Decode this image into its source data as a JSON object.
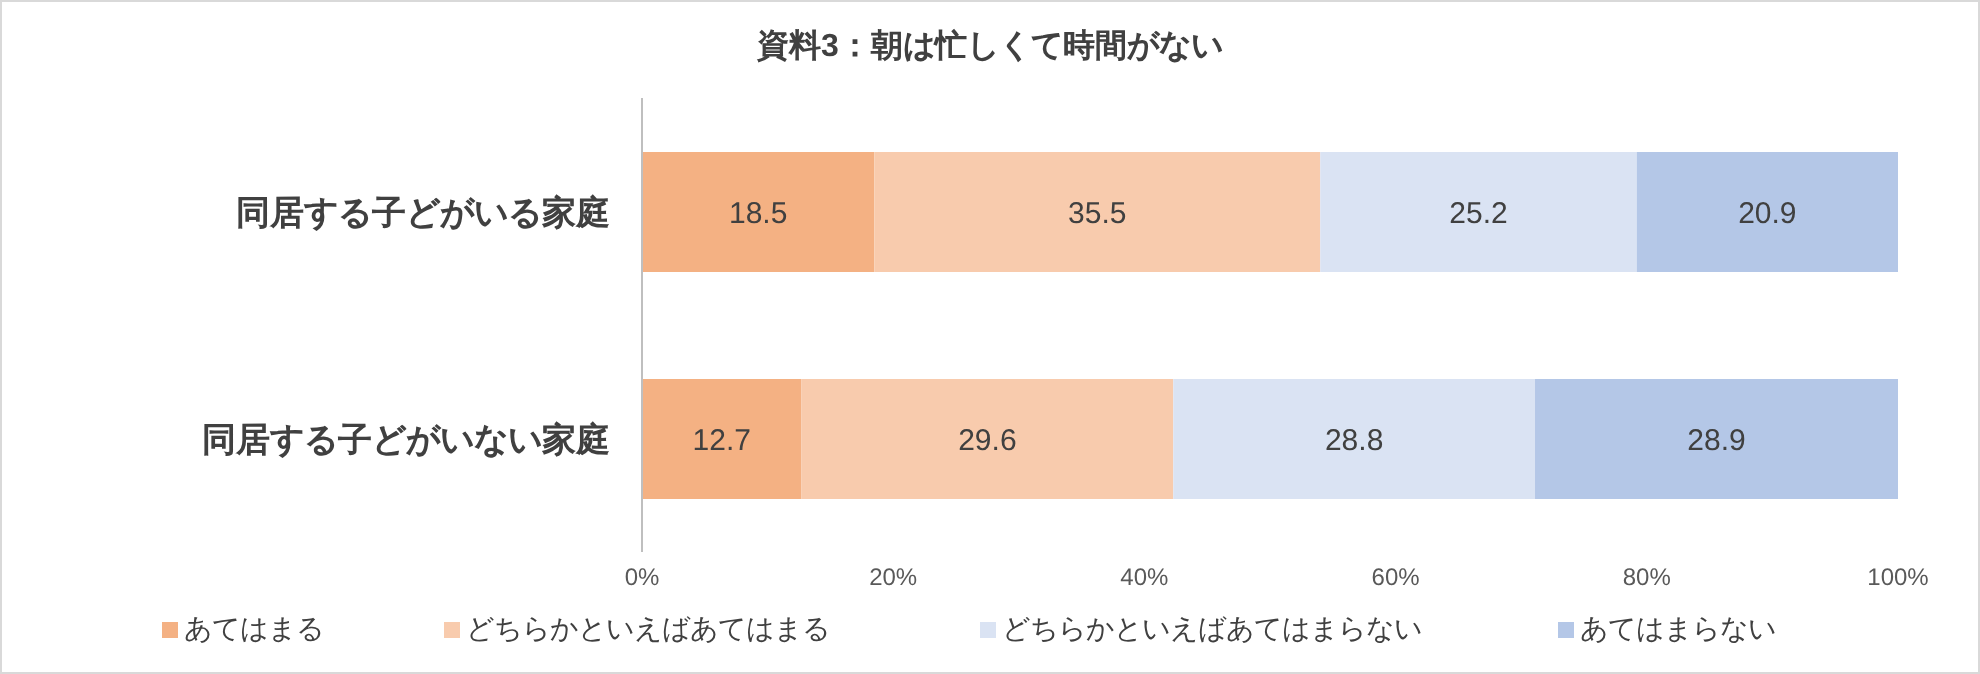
{
  "chart_data": {
    "type": "bar",
    "orientation": "horizontal",
    "stacked": true,
    "title": "資料3：朝は忙しくて時間がない",
    "categories": [
      "同居する子どがいる家庭",
      "同居する子どがいない家庭"
    ],
    "series": [
      {
        "name": "あてはまる",
        "color": "#f4b183",
        "values": [
          18.5,
          12.7
        ]
      },
      {
        "name": "どちらかといえばあてはまる",
        "color": "#f8cbad",
        "values": [
          35.5,
          29.6
        ]
      },
      {
        "name": "どちらかといえばあてはまらない",
        "color": "#dae3f3",
        "values": [
          25.2,
          28.8
        ]
      },
      {
        "name": "あてはまらない",
        "color": "#b4c7e7",
        "values": [
          20.9,
          28.9
        ]
      }
    ],
    "xlim": [
      0,
      100
    ],
    "xticks": [
      {
        "value": 0,
        "label": "0%"
      },
      {
        "value": 20,
        "label": "20%"
      },
      {
        "value": 40,
        "label": "40%"
      },
      {
        "value": 60,
        "label": "60%"
      },
      {
        "value": 80,
        "label": "80%"
      },
      {
        "value": 100,
        "label": "100%"
      }
    ],
    "data_labels": true,
    "legend": "bottom"
  }
}
